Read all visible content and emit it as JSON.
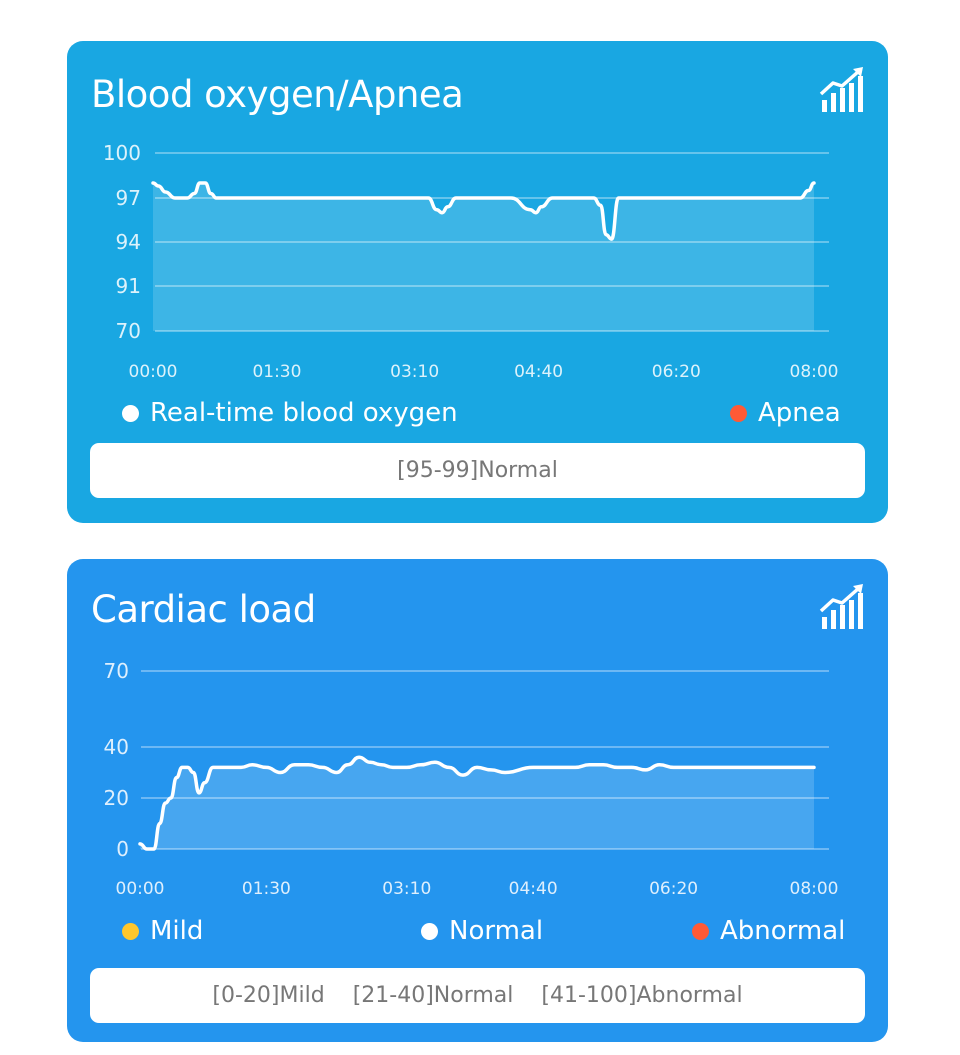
{
  "colors": {
    "card_blood_oxygen": "#19a7e2",
    "card_cardiac": "#2495ee",
    "apnea": "#ff5a36",
    "abnormal": "#ff5a36",
    "mild": "#ffc72c",
    "normal": "#ffffff"
  },
  "icons": [
    "trend-chart-icon"
  ],
  "cards": [
    {
      "title": "Blood oxygen/Apnea",
      "legend": [
        {
          "label": "Real-time blood oxygen",
          "color": "#ffffff"
        },
        {
          "label": "Apnea",
          "color": "#ff5a36"
        }
      ],
      "range_segments": [
        "[95-99]Normal"
      ]
    },
    {
      "title": "Cardiac load",
      "legend": [
        {
          "label": "Mild",
          "color": "#ffc72c"
        },
        {
          "label": "Normal",
          "color": "#ffffff"
        },
        {
          "label": "Abnormal",
          "color": "#ff5a36"
        }
      ],
      "range_segments": [
        "[0-20]Mild",
        "[21-40]Normal",
        "[41-100]Abnormal"
      ]
    }
  ],
  "chart_data": [
    {
      "type": "area",
      "title": "Blood oxygen/Apnea",
      "xlabel": "",
      "ylabel": "",
      "x_ticks": [
        "00:00",
        "01:30",
        "03:10",
        "04:40",
        "06:20",
        "08:00"
      ],
      "y_ticks": [
        100,
        97,
        94,
        91,
        70
      ],
      "grid": true,
      "series": [
        {
          "name": "Real-time blood oxygen",
          "x": [
            "00:00",
            "00:04",
            "00:09",
            "00:16",
            "00:25",
            "00:30",
            "00:34",
            "00:38",
            "00:42",
            "00:46",
            "00:50",
            "01:00",
            "01:30",
            "02:00",
            "02:30",
            "03:00",
            "03:20",
            "03:26",
            "03:30",
            "03:34",
            "03:40",
            "04:00",
            "04:20",
            "04:34",
            "04:38",
            "04:42",
            "04:50",
            "05:10",
            "05:20",
            "05:25",
            "05:29",
            "05:33",
            "05:38",
            "05:50",
            "06:20",
            "07:00",
            "07:30",
            "07:50",
            "07:56",
            "08:00"
          ],
          "values": [
            98,
            97.8,
            97.4,
            97,
            97,
            97.3,
            98,
            98,
            97.3,
            97,
            97,
            97,
            97,
            97,
            97,
            97,
            97,
            96.2,
            96,
            96.4,
            97,
            97,
            97,
            96.2,
            96,
            96.4,
            97,
            97,
            97,
            96.5,
            94.5,
            94.2,
            97,
            97,
            97,
            97,
            97,
            97,
            97.5,
            98
          ]
        },
        {
          "name": "Apnea",
          "x": [],
          "values": []
        }
      ]
    },
    {
      "type": "area",
      "title": "Cardiac load",
      "xlabel": "",
      "ylabel": "",
      "x_ticks": [
        "00:00",
        "01:30",
        "03:10",
        "04:40",
        "06:20",
        "08:00"
      ],
      "y_ticks": [
        70,
        40,
        20,
        0
      ],
      "grid": true,
      "series": [
        {
          "name": "Normal",
          "x": [
            "00:00",
            "00:05",
            "00:10",
            "00:14",
            "00:18",
            "00:22",
            "00:26",
            "00:30",
            "00:34",
            "00:38",
            "00:42",
            "00:46",
            "00:52",
            "01:00",
            "01:12",
            "01:20",
            "01:30",
            "01:40",
            "01:50",
            "02:00",
            "02:10",
            "02:20",
            "02:28",
            "02:36",
            "02:44",
            "02:52",
            "03:00",
            "03:10",
            "03:20",
            "03:30",
            "03:40",
            "03:50",
            "04:00",
            "04:10",
            "04:20",
            "04:40",
            "05:00",
            "05:10",
            "05:20",
            "05:30",
            "05:40",
            "05:50",
            "06:00",
            "06:10",
            "06:20",
            "07:00",
            "07:30",
            "08:00"
          ],
          "values": [
            2,
            0,
            0,
            10,
            18,
            20,
            28,
            32,
            32,
            30,
            22,
            26,
            32,
            32,
            32,
            33,
            32,
            30,
            33,
            33,
            32,
            30,
            33,
            36,
            34,
            33,
            32,
            32,
            33,
            34,
            32,
            29,
            32,
            31,
            30,
            32,
            32,
            32,
            33,
            33,
            32,
            32,
            31,
            33,
            32,
            32,
            32,
            32
          ]
        }
      ]
    }
  ]
}
